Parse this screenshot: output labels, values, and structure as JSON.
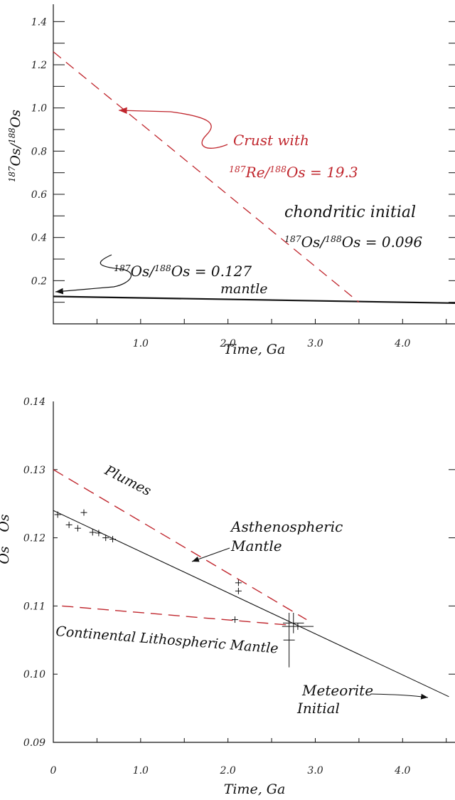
{
  "chart_data": [
    {
      "type": "line",
      "title": "",
      "xlabel": "Time, Ga",
      "ylabel": "187Os/188Os",
      "xlim": [
        0,
        4.6
      ],
      "ylim": [
        0.0,
        1.5
      ],
      "x_ticks": [
        1.0,
        2.0,
        3.0,
        4.0
      ],
      "x_tick_labels": [
        "1.0",
        "2.0",
        "3.0",
        "4.0"
      ],
      "y_ticks": [
        0.2,
        0.4,
        0.6,
        0.8,
        1.0,
        1.2,
        1.4
      ],
      "y_tick_labels": [
        "0.2",
        "0.4",
        "0.6",
        "0.8",
        "1.0",
        "1.2",
        "1.4"
      ],
      "series": [
        {
          "name": "",
          "style": "solid",
          "color": "#111111",
          "x": [
            0,
            4.6
          ],
          "y": [
            0.127,
            0.096
          ]
        },
        {
          "name": "",
          "style": "dashed",
          "color": "#c0262d",
          "x": [
            0,
            3.5
          ],
          "y": [
            1.26,
            0.1
          ]
        }
      ],
      "annotations": {
        "crust_line1": "Crust with",
        "crust_pre": "187",
        "crust_mid": "Re/",
        "crust_sup2": "188",
        "crust_end": "Os = 19.3",
        "chondritic": "chondritic initial",
        "chond_sup1": "187",
        "chond_mid": "Os/",
        "chond_sup2": "188",
        "chond_end": "Os = 0.096",
        "mantle_sup1": "187",
        "mantle_mid": "Os/",
        "mantle_sup2": "188",
        "mantle_end": "Os = 0.127",
        "mantle": "mantle",
        "ylabel_sup1": "187",
        "ylabel_mid": "Os/",
        "ylabel_sup2": "188",
        "ylabel_end": "Os"
      }
    },
    {
      "type": "line",
      "title": "",
      "xlabel": "Time, Ga",
      "ylabel": "",
      "xlim": [
        0,
        4.6
      ],
      "ylim": [
        0.09,
        0.14
      ],
      "x_ticks": [
        0,
        1.0,
        2.0,
        3.0,
        4.0
      ],
      "x_tick_labels": [
        "0",
        "1.0",
        "2.0",
        "3.0",
        "4.0"
      ],
      "y_ticks": [
        0.09,
        0.1,
        0.11,
        0.12,
        0.13,
        0.14
      ],
      "y_tick_labels": [
        "0.09",
        "0.10",
        "0.11",
        "0.12",
        "0.13",
        "0.14"
      ],
      "series": [
        {
          "name": "",
          "style": "solid",
          "color": "#111111",
          "x": [
            0,
            4.53
          ],
          "y": [
            0.124,
            0.0967
          ]
        },
        {
          "name": "Plumes",
          "style": "dashed",
          "color": "#c0262d",
          "x": [
            0,
            2.9
          ],
          "y": [
            0.13,
            0.108
          ]
        },
        {
          "name": "Continental Lithospheric Mantle",
          "style": "dashed",
          "color": "#c0262d",
          "x": [
            0.1,
            2.7
          ],
          "y": [
            0.11,
            0.1072
          ]
        }
      ],
      "points": [
        {
          "x": 0.05,
          "y": 0.1234
        },
        {
          "x": 0.18,
          "y": 0.1219
        },
        {
          "x": 0.28,
          "y": 0.1214
        },
        {
          "x": 0.35,
          "y": 0.1237
        },
        {
          "x": 0.45,
          "y": 0.1208
        },
        {
          "x": 0.52,
          "y": 0.1207
        },
        {
          "x": 0.6,
          "y": 0.12
        },
        {
          "x": 0.68,
          "y": 0.1198
        },
        {
          "x": 2.08,
          "y": 0.108
        },
        {
          "x": 2.12,
          "y": 0.1134
        },
        {
          "x": 2.12,
          "y": 0.1122
        }
      ],
      "error_points": [
        {
          "x": 2.7,
          "y": 0.105,
          "yerr": 0.004,
          "xerr": 0
        },
        {
          "x": 2.75,
          "y": 0.1075,
          "yerr": 0.0015,
          "xerr": 0.12
        },
        {
          "x": 2.8,
          "y": 0.107,
          "yerr": 0.0005,
          "xerr": 0.18
        }
      ],
      "annotations": {
        "plumes": "Plumes",
        "asth1": "Asthenospheric",
        "asth2": "Mantle",
        "clm": "Continental Lithospheric Mantle",
        "met1": "Meteorite",
        "met2": "Initial",
        "ylabel_partial": "Os"
      }
    }
  ]
}
